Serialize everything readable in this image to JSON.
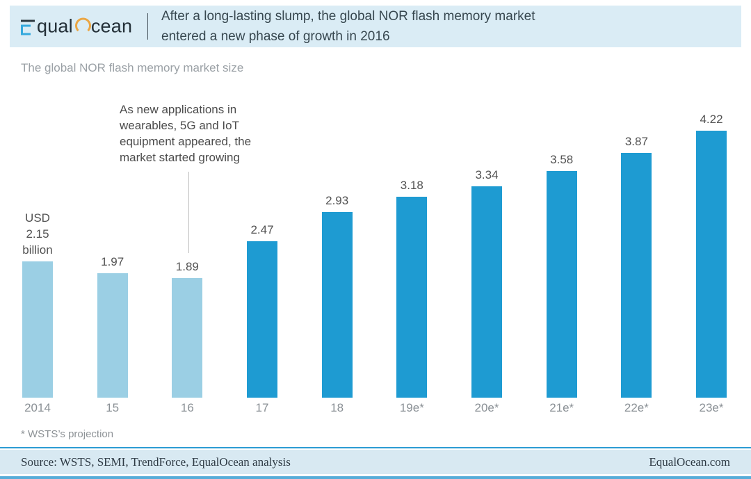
{
  "header": {
    "logo": {
      "equal_text": "qual",
      "ocean_text": "cean"
    },
    "title": "After a long-lasting slump, the global NOR flash memory market\nentered a new phase of growth in 2016"
  },
  "annotation": {
    "text": "As new applications in\nwearables, 5G and IoT\nequipment appeared, the\nmarket started growing"
  },
  "footnote": "* WSTS’s projection",
  "footer": {
    "source": "Source: WSTS, SEMI, TrendForce, EqualOcean analysis",
    "site": "EqualOcean.com"
  },
  "chart_data": {
    "type": "bar",
    "title": "The global NOR flash memory market size",
    "unit": "USD billion",
    "categories": [
      "2014",
      "15",
      "16",
      "17",
      "18",
      "19e*",
      "20e*",
      "21e*",
      "22e*",
      "23e*"
    ],
    "values": [
      2.15,
      1.97,
      1.89,
      2.47,
      2.93,
      3.18,
      3.34,
      3.58,
      3.87,
      4.22
    ],
    "bar_labels": [
      "USD\n2.15\nbillion",
      "1.97",
      "1.89",
      "2.47",
      "2.93",
      "3.18",
      "3.34",
      "3.58",
      "3.87",
      "4.22"
    ],
    "series_split": {
      "historical_indices": [
        0,
        1,
        2
      ],
      "projection_indices": [
        3,
        4,
        5,
        6,
        7,
        8,
        9
      ]
    },
    "colors": {
      "historical_bar": "#9bcfe4",
      "projection_bar": "#1e9bd2",
      "accent_line": "#2c9cd3",
      "header_bg": "#daecf5",
      "logo_orange": "#eba643",
      "logo_blue": "#35a9dd"
    },
    "ylim": [
      0,
      4.6
    ],
    "grid": false,
    "annotation": "As new applications in wearables, 5G and IoT equipment appeared, the market started growing",
    "footnote": "* WSTS’s projection"
  }
}
